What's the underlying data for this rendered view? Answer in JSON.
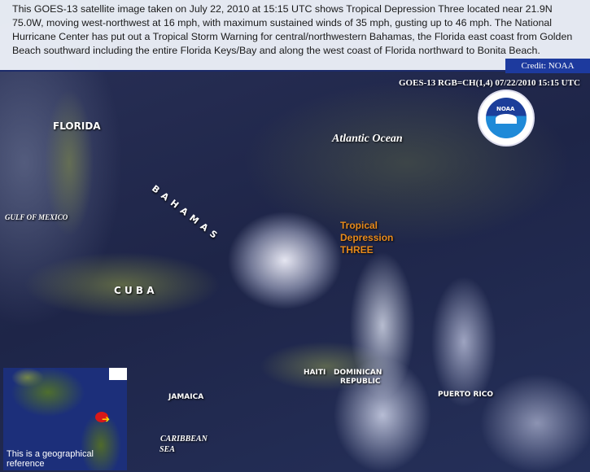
{
  "caption": {
    "text": "This GOES-13 satellite image taken on July 22, 2010 at 15:15 UTC shows Tropical Depression Three located near 21.9N 75.0W, moving west-northwest at 16 mph, with maximum sustained winds of 35 mph, gusting up to 46 mph. The National Hurricane Center has put out a Tropical Storm Warning for central/northwestern Bahamas, the Florida east coast from Golden Beach southward including the entire Florida Keys/Bay and along the west coast of Florida northward to Bonita Beach.",
    "credit": "Credit: NOAA"
  },
  "image": {
    "header": "GOES-13 RGB=CH(1,4)  07/22/2010 15:15 UTC",
    "logo_text": "NOAA",
    "labels": {
      "florida": "FLORIDA",
      "atlantic": "Atlantic   Ocean",
      "gulf": "GULF OF MEXICO",
      "bahamas": "BAHAMAS",
      "cuba": "C U B A",
      "haiti": "HAITI",
      "dominican": "DOMINICAN",
      "republic": "REPUBLIC",
      "puerto_rico": "PUERTO RICO",
      "jamaica": "JAMAICA",
      "caribbean": "CARIBBEAN",
      "sea": "SEA"
    },
    "storm_label": [
      "Tropical",
      "Depression",
      "THREE"
    ],
    "storm_label_color": "#e88a1a",
    "inset": {
      "caption": "This is a geographical reference",
      "marker_color": "#d81818",
      "arrow_color": "#ffe000"
    }
  }
}
